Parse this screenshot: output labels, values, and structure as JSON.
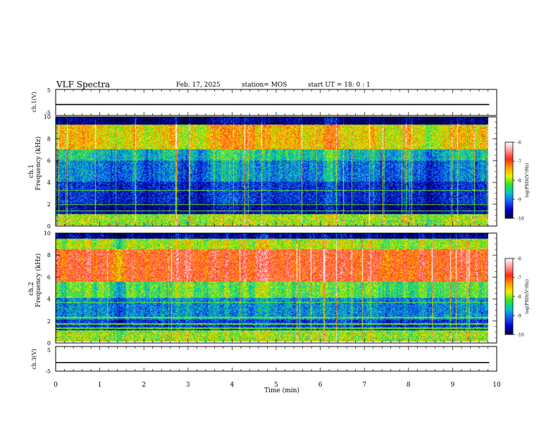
{
  "header": {
    "title": "VLF Spectra",
    "date": "Feb. 17, 2025",
    "station": "station= MOS",
    "start": "start  UT =   18: 0  : 1"
  },
  "colorbar": {
    "label": "log(PSD)(V²/Hz)",
    "ticks": [
      -6,
      -7,
      -8,
      -9,
      -10
    ],
    "colors": [
      "#ffffff",
      "#ff9a9a",
      "#ff2a1a",
      "#ffa000",
      "#f0f000",
      "#28e628",
      "#00c8c8",
      "#1a5aff",
      "#0000c8",
      "#000040"
    ]
  },
  "chart_data": [
    {
      "type": "line",
      "panel": "ch1-voltage",
      "ylabel": "ch.1(V)",
      "ylim": [
        -5,
        5
      ],
      "yticks": [
        "5",
        "-5"
      ],
      "xlim": [
        0,
        10
      ],
      "series": [
        {
          "x": [
            0,
            9.83
          ],
          "y": [
            -0.8,
            -0.8
          ]
        }
      ]
    },
    {
      "type": "heatmap",
      "panel": "ch1-spectrogram",
      "ylabel": "ch.1",
      "ylabel2": "Frequency (kHz)",
      "ylim": [
        0,
        10
      ],
      "yticks": [
        "0",
        "2",
        "4",
        "6",
        "8",
        "10"
      ],
      "xlim": [
        0,
        10
      ],
      "x_end": 9.83,
      "description_levels": {
        "bands_khz": [
          [
            0,
            1,
            -8
          ],
          [
            1,
            2,
            -9.7
          ],
          [
            2,
            4,
            -9.4
          ],
          [
            4,
            6,
            -9.0
          ],
          [
            6,
            7,
            -8.6
          ],
          [
            7,
            9.3,
            -7.6
          ],
          [
            9.3,
            10,
            -9.9
          ]
        ],
        "hum_lines_khz": [
          0.6,
          1.3,
          1.9,
          3.2
        ]
      }
    },
    {
      "type": "heatmap",
      "panel": "ch2-spectrogram",
      "ylabel": "ch.2",
      "ylabel2": "Frequency (kHz)",
      "ylim": [
        0,
        10
      ],
      "yticks": [
        "0",
        "2",
        "4",
        "6",
        "8",
        "10"
      ],
      "xlim": [
        0,
        10
      ],
      "x_end": 9.83,
      "description_levels": {
        "bands_khz": [
          [
            0,
            1,
            -8
          ],
          [
            1,
            2,
            -9.3
          ],
          [
            2,
            4,
            -8.9
          ],
          [
            4,
            5.5,
            -8.2
          ],
          [
            5.5,
            8.5,
            -6.9
          ],
          [
            8.5,
            9.5,
            -7.9
          ],
          [
            9.5,
            10,
            -9.7
          ]
        ],
        "hum_lines_khz": [
          0.6,
          1.2,
          1.6,
          2.2,
          3.6
        ]
      }
    },
    {
      "type": "line",
      "panel": "ch3-voltage",
      "ylabel": "ch.3(V)",
      "ylim": [
        -5,
        5
      ],
      "yticks": [
        "5",
        "-5"
      ],
      "xlim": [
        0,
        10
      ],
      "xlabel": "Time (min)",
      "xticks": [
        "0",
        "1",
        "2",
        "3",
        "4",
        "5",
        "6",
        "7",
        "8",
        "9",
        "10"
      ],
      "series": [
        {
          "x": [
            0,
            9.83
          ],
          "y": [
            -1.5,
            -1.5
          ]
        }
      ]
    }
  ]
}
